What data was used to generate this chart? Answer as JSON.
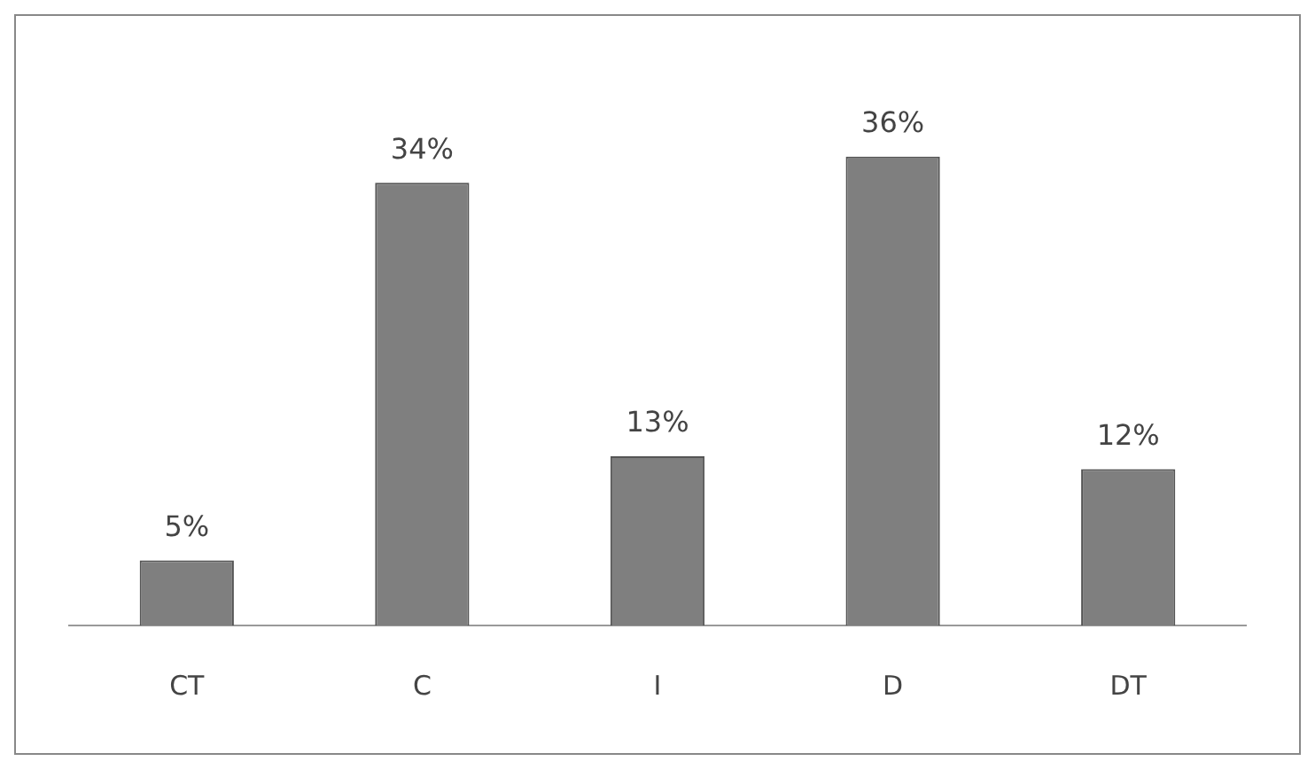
{
  "chart_data": {
    "type": "bar",
    "categories": [
      "CT",
      "C",
      "I",
      "D",
      "DT"
    ],
    "values": [
      5,
      34,
      13,
      36,
      12
    ],
    "value_labels": [
      "5%",
      "34%",
      "13%",
      "36%",
      "12%"
    ],
    "color": "#7f7f7f",
    "grid": false,
    "legend": false,
    "tick_labels": "x"
  }
}
